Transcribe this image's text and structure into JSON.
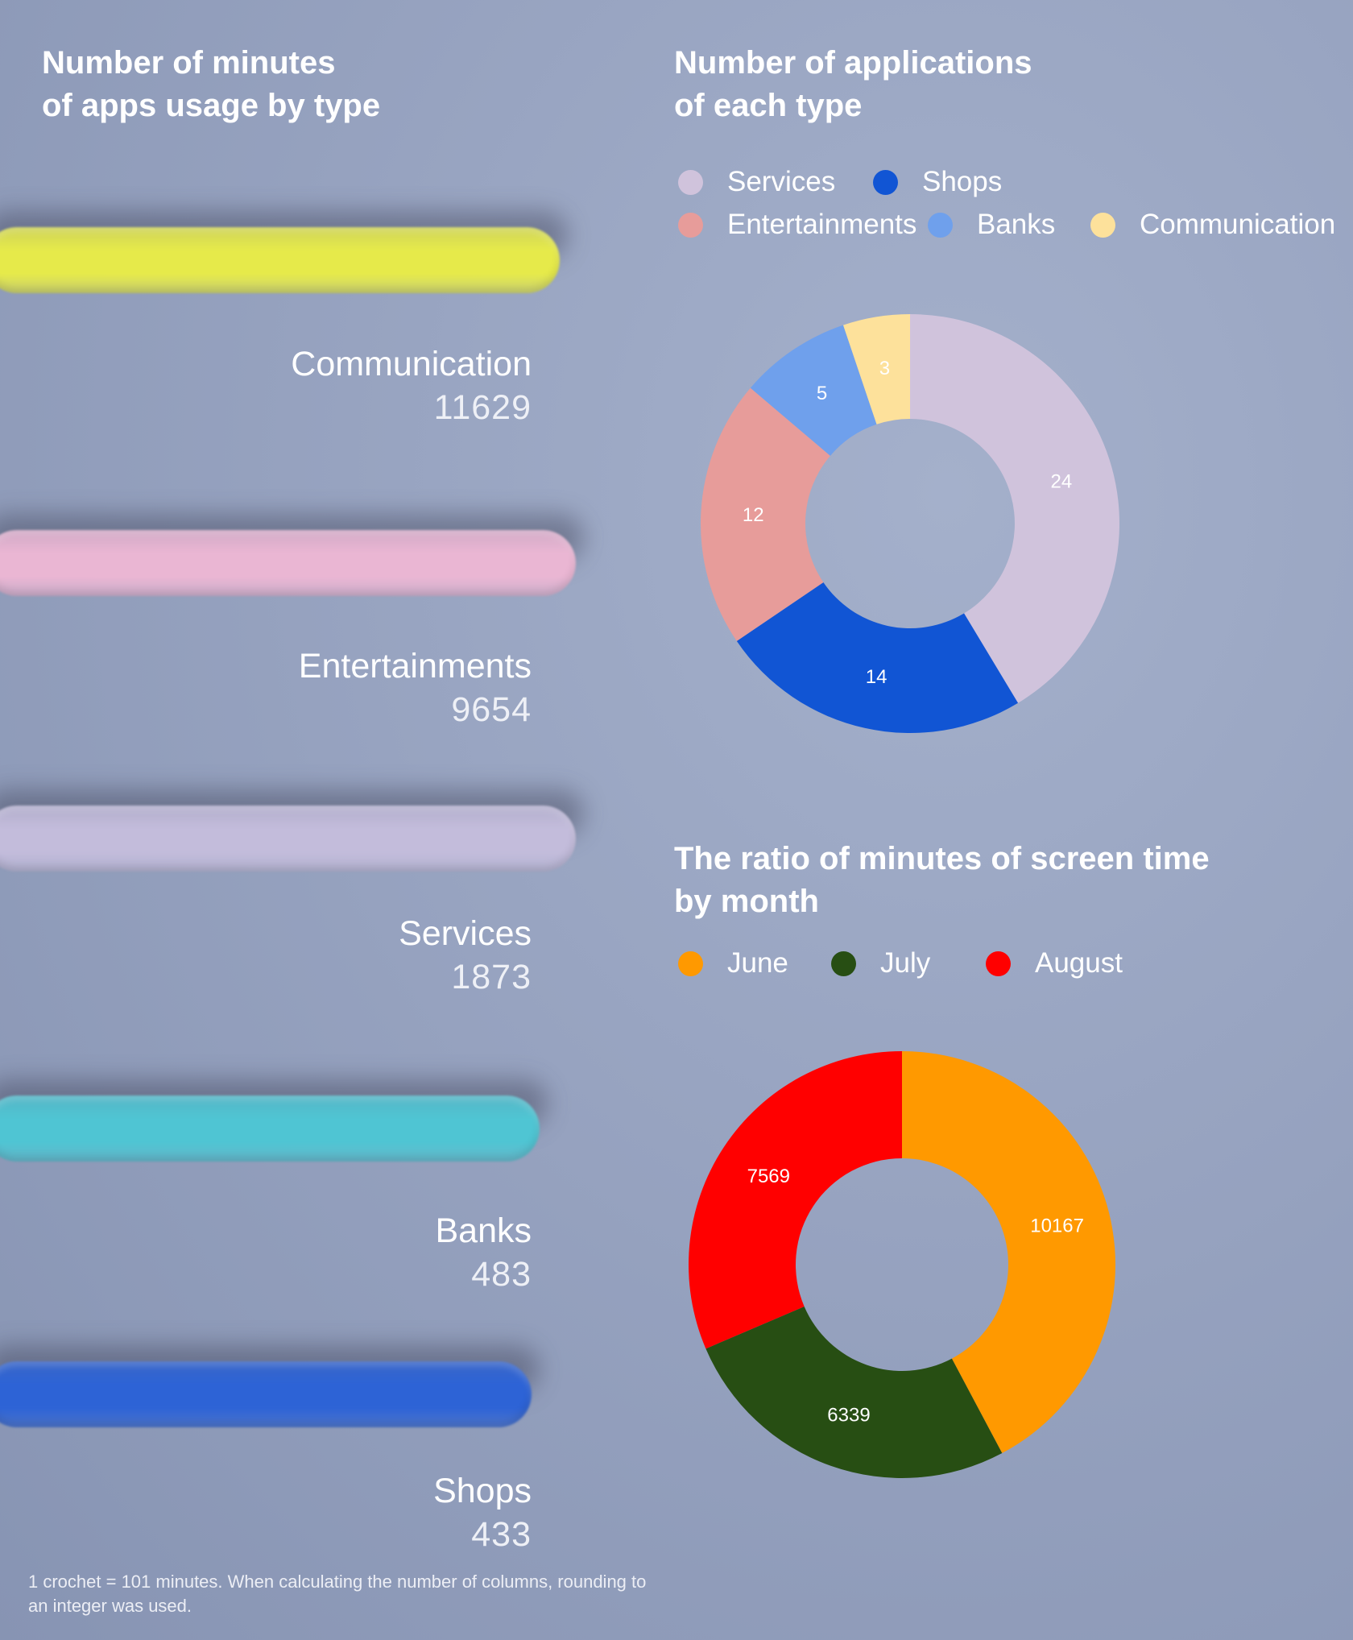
{
  "left_chart": {
    "title": "Number of minutes\nof apps usage by type",
    "items": [
      {
        "label": "Communication",
        "value": "11629",
        "color": "#e6ea4a"
      },
      {
        "label": "Entertainments",
        "value": "9654",
        "color": "#eab6d3"
      },
      {
        "label": "Services",
        "value": "1873",
        "color": "#c3bcdb"
      },
      {
        "label": "Banks",
        "value": "483",
        "color": "#4fc5d3"
      },
      {
        "label": "Shops",
        "value": "433",
        "color": "#2d63d6"
      }
    ],
    "footnote": "1 crochet = 101 minutes. When calculating the number of columns, rounding to an integer was used."
  },
  "chart_data": [
    {
      "type": "bar",
      "title": "Number of minutes\nof apps usage by type",
      "categories": [
        "Communication",
        "Entertainments",
        "Services",
        "Banks",
        "Shops"
      ],
      "values": [
        11629,
        9654,
        1873,
        483,
        433
      ]
    },
    {
      "type": "pie",
      "title": "Number of applications\nof each type",
      "legend": [
        "Services",
        "Shops",
        "Entertainments",
        "Banks",
        "Communication"
      ],
      "labels": [
        "Services",
        "Shops",
        "Entertainments",
        "Banks",
        "Communication"
      ],
      "values": [
        24,
        14,
        12,
        5,
        3
      ],
      "colors": [
        "#d0c3dc",
        "#1155d4",
        "#e79c9a",
        "#6fa0ec",
        "#fde19b"
      ]
    },
    {
      "type": "pie",
      "title": "The ratio of minutes of screen time\nby month",
      "legend": [
        "June",
        "July",
        "August"
      ],
      "labels": [
        "June",
        "July",
        "August"
      ],
      "values": [
        10167,
        6339,
        7569
      ],
      "colors": [
        "#ff9900",
        "#274e13",
        "#ff0000"
      ]
    }
  ]
}
